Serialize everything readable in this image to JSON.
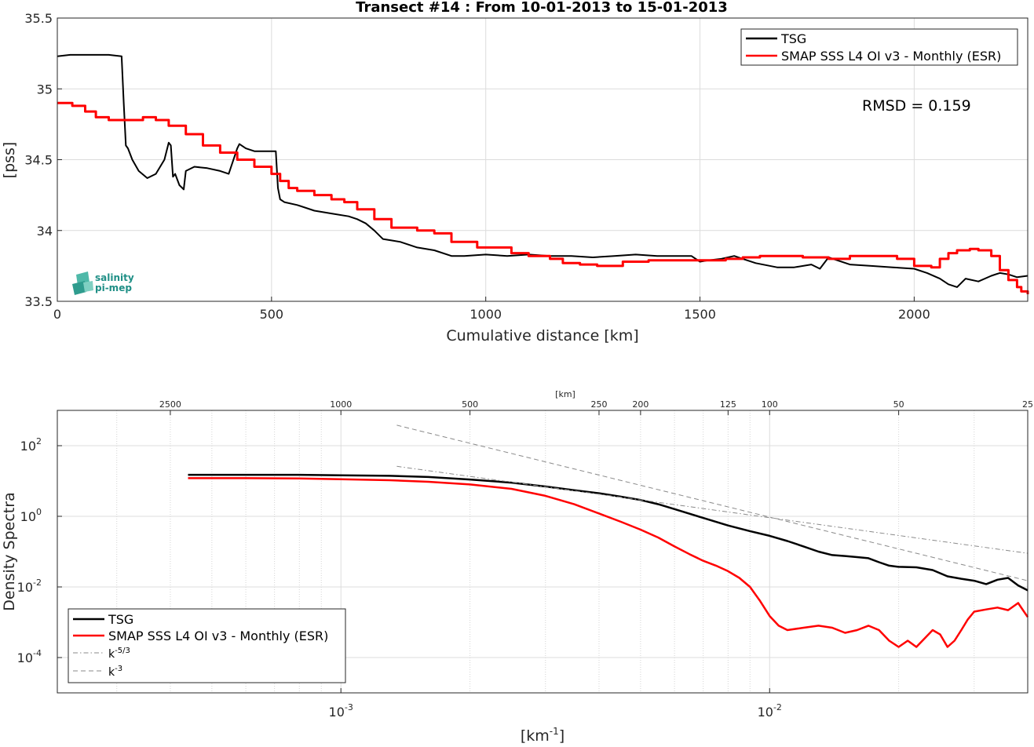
{
  "chart_data": [
    {
      "type": "line",
      "title": "Transect #14 : From 10-01-2013 to 15-01-2013",
      "xlabel": "Cumulative distance [km]",
      "ylabel": "[pss]",
      "xlim": [
        0,
        2265
      ],
      "ylim": [
        33.5,
        35.5
      ],
      "xticks": [
        0,
        500,
        1000,
        1500,
        2000
      ],
      "yticks": [
        33.5,
        34,
        34.5,
        35,
        35.5
      ],
      "grid": true,
      "legend": "top-right",
      "annotation": "RMSD = 0.159",
      "logo": {
        "line1": "salinity",
        "line2": "pi-mep"
      },
      "series": [
        {
          "name": "TSG",
          "color": "#000000",
          "x": [
            0,
            30,
            60,
            90,
            120,
            150,
            155,
            160,
            165,
            175,
            190,
            210,
            230,
            250,
            260,
            265,
            270,
            275,
            285,
            295,
            300,
            320,
            350,
            380,
            400,
            420,
            425,
            440,
            460,
            480,
            500,
            510,
            515,
            520,
            530,
            560,
            600,
            640,
            680,
            700,
            720,
            740,
            760,
            780,
            800,
            840,
            880,
            920,
            950,
            1000,
            1050,
            1100,
            1150,
            1200,
            1250,
            1300,
            1350,
            1400,
            1450,
            1480,
            1500,
            1520,
            1550,
            1580,
            1600,
            1630,
            1680,
            1720,
            1760,
            1780,
            1800,
            1850,
            1900,
            1950,
            2000,
            2030,
            2060,
            2080,
            2100,
            2120,
            2150,
            2180,
            2200,
            2220,
            2240,
            2265
          ],
          "y": [
            35.23,
            35.24,
            35.24,
            35.24,
            35.24,
            35.23,
            34.9,
            34.6,
            34.58,
            34.5,
            34.42,
            34.37,
            34.4,
            34.5,
            34.62,
            34.6,
            34.38,
            34.4,
            34.32,
            34.29,
            34.42,
            34.45,
            34.44,
            34.42,
            34.4,
            34.58,
            34.61,
            34.58,
            34.56,
            34.56,
            34.56,
            34.56,
            34.3,
            34.22,
            34.2,
            34.18,
            34.14,
            34.12,
            34.1,
            34.08,
            34.05,
            34.0,
            33.94,
            33.93,
            33.92,
            33.88,
            33.86,
            33.82,
            33.82,
            33.83,
            33.82,
            33.83,
            33.82,
            33.82,
            33.81,
            33.82,
            33.83,
            33.82,
            33.82,
            33.82,
            33.78,
            33.79,
            33.8,
            33.82,
            33.8,
            33.77,
            33.74,
            33.74,
            33.76,
            33.73,
            33.81,
            33.76,
            33.75,
            33.74,
            33.73,
            33.7,
            33.66,
            33.62,
            33.6,
            33.66,
            33.64,
            33.68,
            33.7,
            33.69,
            33.67,
            33.68
          ]
        },
        {
          "name": "SMAP SSS L4 OI v3 - Monthly (ESR)",
          "color": "#ff0000",
          "x": [
            0,
            35,
            65,
            90,
            120,
            150,
            200,
            230,
            260,
            300,
            340,
            380,
            420,
            460,
            500,
            520,
            540,
            560,
            600,
            640,
            670,
            700,
            740,
            780,
            840,
            880,
            920,
            980,
            1060,
            1100,
            1150,
            1180,
            1220,
            1260,
            1320,
            1380,
            1440,
            1500,
            1560,
            1600,
            1640,
            1700,
            1740,
            1800,
            1850,
            1900,
            1960,
            2000,
            2040,
            2060,
            2080,
            2100,
            2130,
            2150,
            2180,
            2200,
            2220,
            2240,
            2250,
            2265
          ],
          "y": [
            34.9,
            34.88,
            34.84,
            34.8,
            34.78,
            34.78,
            34.8,
            34.78,
            34.74,
            34.68,
            34.6,
            34.55,
            34.5,
            34.45,
            34.4,
            34.35,
            34.3,
            34.28,
            34.25,
            34.22,
            34.2,
            34.15,
            34.08,
            34.02,
            34.0,
            33.98,
            33.92,
            33.88,
            33.84,
            33.82,
            33.8,
            33.77,
            33.76,
            33.75,
            33.78,
            33.79,
            33.79,
            33.79,
            33.8,
            33.81,
            33.82,
            33.82,
            33.81,
            33.8,
            33.82,
            33.82,
            33.8,
            33.75,
            33.74,
            33.8,
            33.84,
            33.86,
            33.87,
            33.86,
            33.82,
            33.72,
            33.65,
            33.6,
            33.57,
            33.55
          ]
        }
      ]
    },
    {
      "type": "line",
      "title": "",
      "xlabel": "[km-1]",
      "xlabel_main": "[km",
      "xlabel_sup": "-1",
      "xlabel_end": "]",
      "ylabel": "Density Spectra",
      "top_axis_label": "[km]",
      "xscale": "log",
      "yscale": "log",
      "xlim": [
        0.000218,
        0.04
      ],
      "ylim": [
        1e-05,
        1000
      ],
      "xticks": [
        0.001,
        0.01
      ],
      "xtick_labels": [
        {
          "base": "10",
          "exp": "-3"
        },
        {
          "base": "10",
          "exp": "-2"
        }
      ],
      "yticks": [
        0.0001,
        0.01,
        1,
        100
      ],
      "ytick_labels": [
        {
          "base": "10",
          "exp": "-4"
        },
        {
          "base": "10",
          "exp": "-2"
        },
        {
          "base": "10",
          "exp": "0"
        },
        {
          "base": "10",
          "exp": "2"
        }
      ],
      "top_ticks": [
        2500,
        1000,
        500,
        250,
        200,
        125,
        100,
        50,
        25
      ],
      "grid": true,
      "legend": "bottom-left",
      "series": [
        {
          "name": "TSG",
          "color": "#000000",
          "x": [
            0.00044,
            0.0006,
            0.0008,
            0.001,
            0.0013,
            0.0016,
            0.002,
            0.0025,
            0.003,
            0.0035,
            0.004,
            0.0045,
            0.005,
            0.0055,
            0.006,
            0.007,
            0.008,
            0.009,
            0.01,
            0.011,
            0.012,
            0.013,
            0.014,
            0.015,
            0.016,
            0.017,
            0.018,
            0.019,
            0.02,
            0.022,
            0.024,
            0.026,
            0.028,
            0.03,
            0.032,
            0.034,
            0.036,
            0.038,
            0.04
          ],
          "y": [
            15,
            15,
            15,
            14.5,
            14,
            13,
            11,
            9,
            7,
            5.5,
            4.5,
            3.6,
            2.9,
            2.2,
            1.6,
            0.9,
            0.55,
            0.38,
            0.28,
            0.2,
            0.14,
            0.1,
            0.08,
            0.075,
            0.07,
            0.065,
            0.05,
            0.04,
            0.037,
            0.036,
            0.03,
            0.02,
            0.017,
            0.015,
            0.012,
            0.016,
            0.018,
            0.011,
            0.008
          ]
        },
        {
          "name": "SMAP SSS L4 OI v3 - Monthly (ESR)",
          "color": "#ff0000",
          "x": [
            0.00044,
            0.0006,
            0.0008,
            0.001,
            0.0013,
            0.0016,
            0.002,
            0.0025,
            0.003,
            0.0035,
            0.004,
            0.0045,
            0.005,
            0.0055,
            0.006,
            0.0065,
            0.007,
            0.0075,
            0.008,
            0.0085,
            0.009,
            0.0095,
            0.01,
            0.0105,
            0.011,
            0.012,
            0.013,
            0.014,
            0.015,
            0.016,
            0.017,
            0.018,
            0.019,
            0.02,
            0.021,
            0.022,
            0.023,
            0.024,
            0.025,
            0.026,
            0.027,
            0.028,
            0.029,
            0.03,
            0.032,
            0.034,
            0.036,
            0.038,
            0.04
          ],
          "y": [
            12,
            12,
            11.8,
            11.2,
            10.5,
            9.5,
            8,
            6,
            3.8,
            2.2,
            1.2,
            0.7,
            0.42,
            0.25,
            0.14,
            0.085,
            0.055,
            0.04,
            0.028,
            0.018,
            0.01,
            0.004,
            0.0015,
            0.0008,
            0.0006,
            0.0007,
            0.0008,
            0.0007,
            0.0005,
            0.0006,
            0.0008,
            0.0006,
            0.0003,
            0.0002,
            0.0003,
            0.0002,
            0.00035,
            0.0006,
            0.00045,
            0.0002,
            0.0003,
            0.0006,
            0.0012,
            0.002,
            0.0023,
            0.0026,
            0.0022,
            0.0035,
            0.0014
          ]
        },
        {
          "name": "k-5/3",
          "name_base": "k",
          "name_sup": "-5/3",
          "color": "#8a8a8a",
          "dash": "dashdot",
          "x": [
            0.00135,
            0.04
          ],
          "y": [
            26,
            0.09
          ]
        },
        {
          "name": "k-3",
          "name_base": "k",
          "name_sup": "-3",
          "color": "#8a8a8a",
          "dash": "dashed",
          "x": [
            0.00135,
            0.04
          ],
          "y": [
            380,
            0.015
          ]
        }
      ]
    }
  ]
}
